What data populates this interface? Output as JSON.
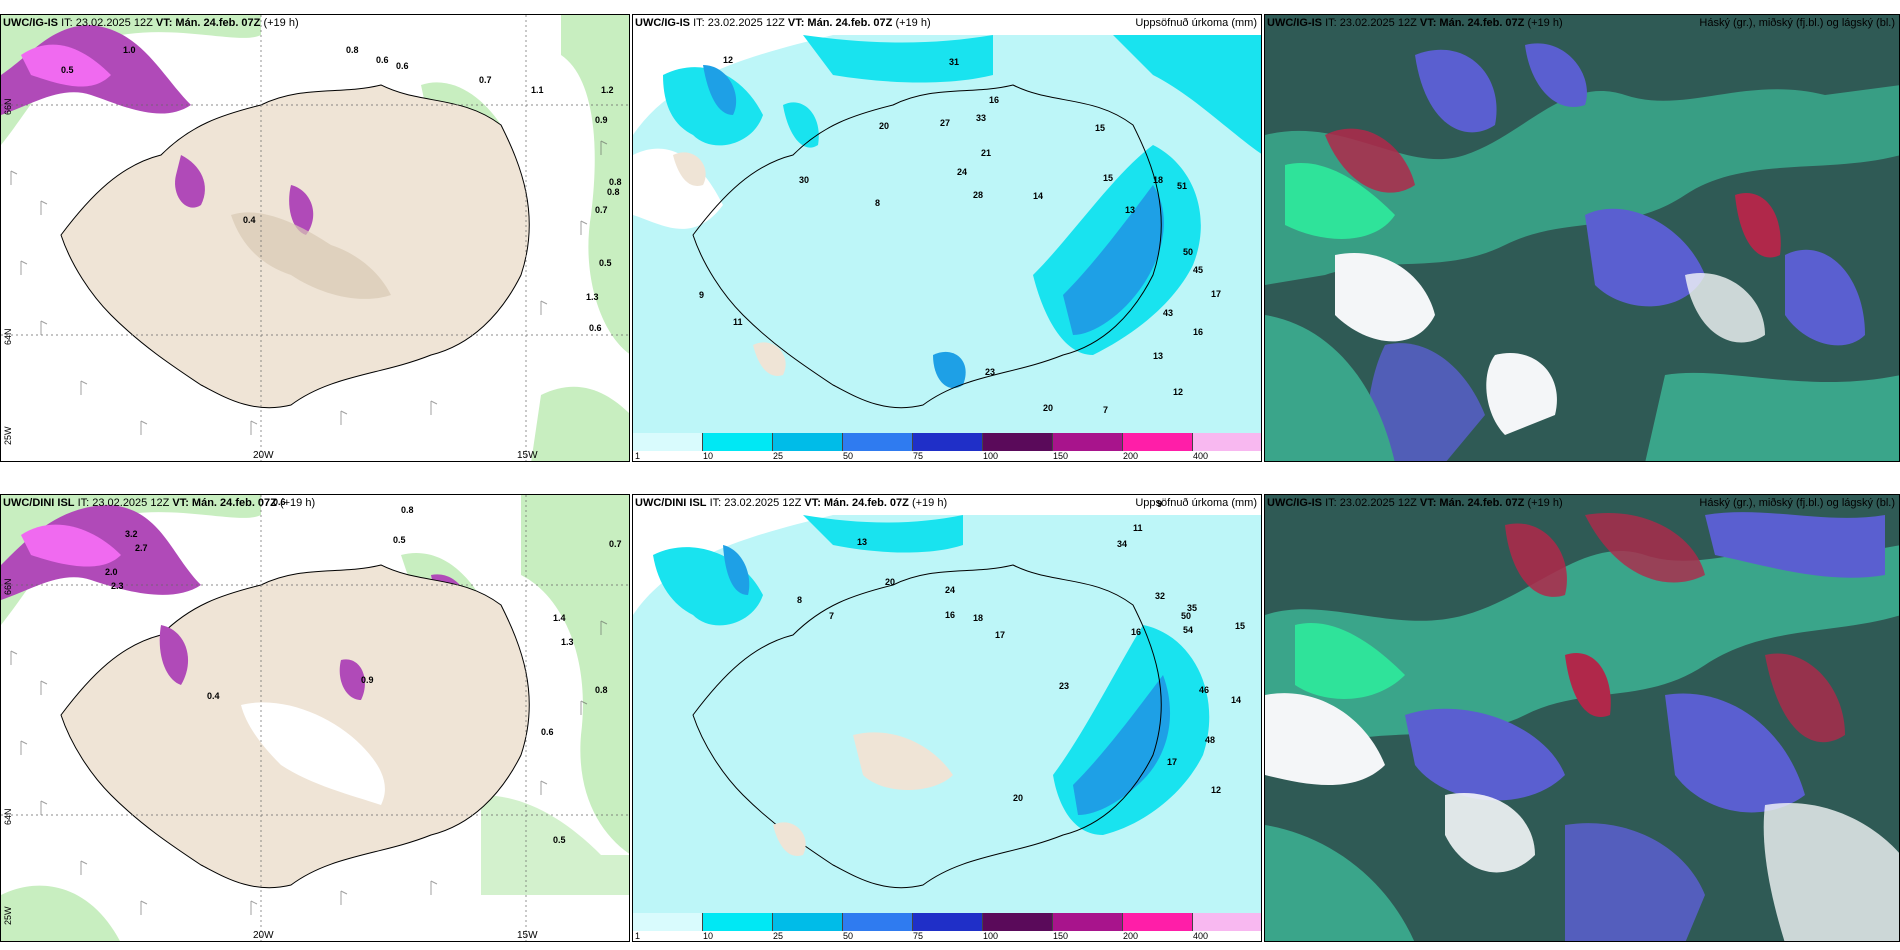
{
  "panels": [
    {
      "id": "top-left",
      "model": "UWC/IG-IS",
      "init": "IT: 23.02.2025 12Z",
      "valid": "VT: Mán. 24.feb. 07Z",
      "lead": "(+19 h)",
      "field_title": "",
      "values": [
        "0.5",
        "1.0",
        "0.8",
        "0.6",
        "1.2",
        "0.7",
        "0.9",
        "0.4",
        "0.8",
        "0.6",
        "1.1",
        "0.5",
        "1.3",
        "0.7",
        "0.8",
        "0.6"
      ]
    },
    {
      "id": "top-middle",
      "model": "UWC/IG-IS",
      "init": "IT: 23.02.2025 12Z",
      "valid": "VT: Mán. 24.feb. 07Z",
      "lead": "(+19 h)",
      "field_title": "Uppsöfnuð úrkoma (mm)",
      "values": [
        "12",
        "31",
        "16",
        "20",
        "27",
        "33",
        "15",
        "21",
        "24",
        "28",
        "30",
        "13",
        "8",
        "14",
        "15",
        "18",
        "51",
        "50",
        "45",
        "43",
        "17",
        "16",
        "13",
        "12",
        "23",
        "20",
        "7",
        "9",
        "11"
      ]
    },
    {
      "id": "top-right",
      "model": "UWC/IG-IS",
      "init": "IT: 23.02.2025 12Z",
      "valid": "VT: Mán. 24.feb. 07Z",
      "lead": "(+19 h)",
      "field_title": "Háský (gr.), miðský (fj.bl.) og lágský (bl.)",
      "values": []
    },
    {
      "id": "bottom-left",
      "model": "UWC/DINI ISL",
      "init": "IT: 23.02.2025 12Z",
      "valid": "VT: Mán. 24.feb. 07Z",
      "lead": "(+19 h)",
      "field_title": "",
      "values": [
        "3.2",
        "2.7",
        "2.0",
        "2.3",
        "0.6",
        "0.8",
        "0.5",
        "0.7",
        "1.4",
        "0.4",
        "0.9",
        "1.3",
        "0.8",
        "0.6",
        "0.5"
      ]
    },
    {
      "id": "bottom-middle",
      "model": "UWC/DINI ISL",
      "init": "IT: 23.02.2025 12Z",
      "valid": "VT: Mán. 24.feb. 07Z",
      "lead": "(+19 h)",
      "field_title": "Uppsöfnuð úrkoma (mm)",
      "values": [
        "13",
        "20",
        "24",
        "16",
        "18",
        "17",
        "34",
        "32",
        "50",
        "54",
        "46",
        "48",
        "35",
        "16",
        "15",
        "17",
        "12",
        "14",
        "23",
        "20",
        "9",
        "11",
        "8",
        "7"
      ]
    },
    {
      "id": "bottom-right",
      "model": "UWC/IG-IS",
      "init": "IT: 23.02.2025 12Z",
      "valid": "VT: Mán. 24.feb. 07Z",
      "lead": "(+19 h)",
      "field_title": "Háský (gr.), miðský (fj.bl.) og lágský (bl.)",
      "values": []
    }
  ],
  "axis_labels": {
    "lon_20w": "20W",
    "lon_15w": "15W",
    "lat_66n": "66N",
    "lat_64n": "64N",
    "lon_25w": "25W"
  },
  "precip_legend": {
    "ticks": [
      "1",
      "10",
      "25",
      "50",
      "75",
      "100",
      "150",
      "200",
      "400"
    ],
    "colors": [
      "#d9fbfd",
      "#00e8f4",
      "#00bce8",
      "#2f7bf0",
      "#1f2fc8",
      "#5a0a5a",
      "#a8148c",
      "#ff1ea8",
      "#f8b8f0"
    ]
  },
  "colors": {
    "land": "#efe4d6",
    "sea": "#ffffff",
    "precip_light": "#bdf6f8",
    "precip_cyan": "#19e3ef",
    "precip_blue": "#1ea0e6",
    "snow_purple": "#b04ab8",
    "snow_magenta": "#f06af0",
    "green_light": "#c8eec0",
    "green_mid": "#78d27a",
    "cloud_dark": "#2f5a55",
    "cloud_teal": "#3aa58a",
    "cloud_green": "#2fe39a",
    "cloud_blue": "#5a5fd0",
    "cloud_red": "#b0284a",
    "cloud_white": "#f4f6f8"
  }
}
